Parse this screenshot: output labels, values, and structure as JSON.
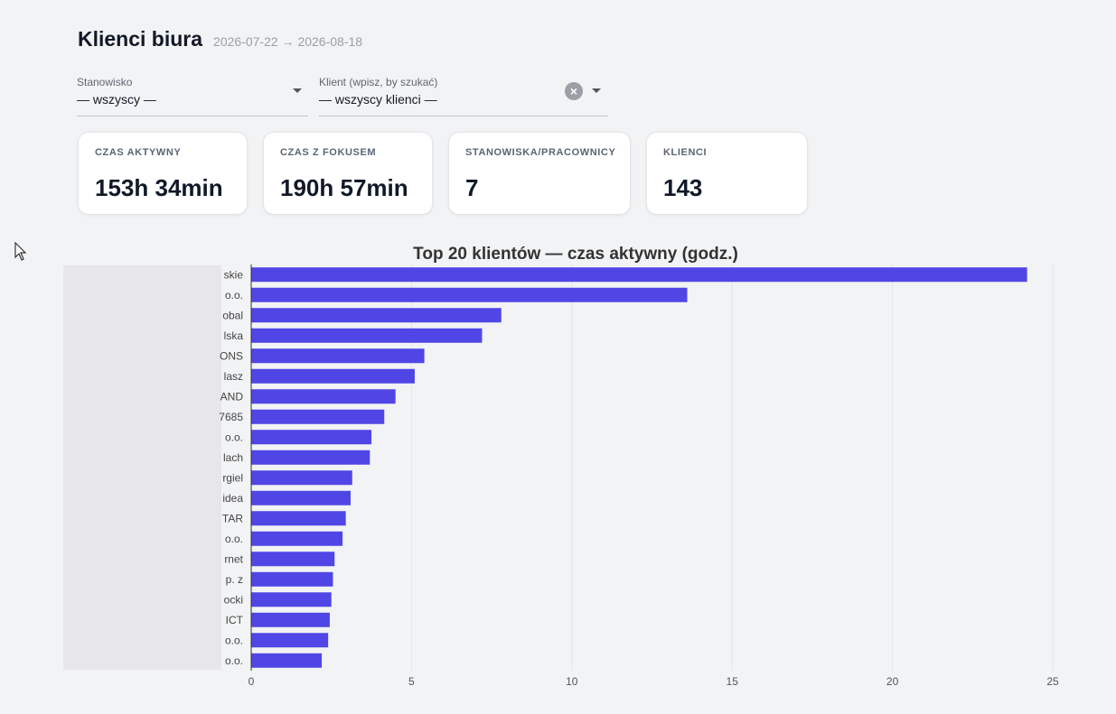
{
  "header": {
    "title": "Klienci biura",
    "date_range": "2026-07-22 → 2026-08-18"
  },
  "filters": {
    "station": {
      "label": "Stanowisko",
      "value": "— wszyscy —"
    },
    "client": {
      "label": "Klient (wpisz, by szukać)",
      "value": "— wszyscy klienci —"
    }
  },
  "kpis": [
    {
      "label": "CZAS AKTYWNY",
      "value": "153h 34min"
    },
    {
      "label": "CZAS Z FOKUSEM",
      "value": "190h 57min"
    },
    {
      "label": "STANOWISKA/PRACOWNICY",
      "value": "7"
    },
    {
      "label": "KLIENCI",
      "value": "143"
    }
  ],
  "colors": {
    "bar": "#5046e5",
    "grid": "#e2e4e8",
    "background": "#f2f3f5"
  },
  "chart_data": {
    "type": "bar",
    "orientation": "horizontal",
    "title": "Top 20 klientów — czas aktywny (godz.)",
    "categories": [
      "skie",
      "o.o.",
      "obal",
      "lska",
      "ONS",
      "lasz",
      "AND",
      "7685",
      "o.o.",
      "lach",
      "rgiel",
      "idea",
      "TAR",
      "o.o.",
      "rnet",
      "p. z",
      "ocki",
      "ICT",
      "o.o.",
      "o.o."
    ],
    "values": [
      24.2,
      13.6,
      7.8,
      7.2,
      5.4,
      5.1,
      4.5,
      4.15,
      3.75,
      3.7,
      3.15,
      3.1,
      2.95,
      2.85,
      2.6,
      2.55,
      2.5,
      2.45,
      2.4,
      2.2
    ],
    "xlim": [
      0,
      25
    ],
    "xticks": [
      "0",
      "5",
      "10",
      "15",
      "20",
      "25"
    ],
    "grid": true,
    "legend": "none"
  }
}
